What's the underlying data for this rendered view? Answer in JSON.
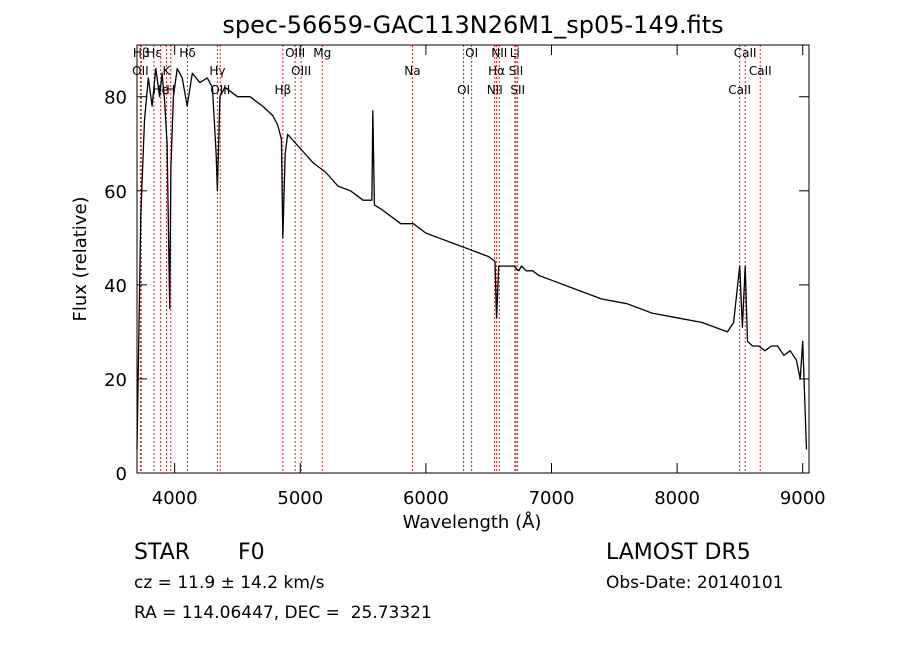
{
  "chart_data": {
    "type": "line",
    "title": "spec-56659-GAC113N26M1_sp05-149.fits",
    "xlabel": "Wavelength (Å)",
    "ylabel": "Flux (relative)",
    "xlim": [
      3700,
      9050
    ],
    "ylim": [
      0,
      91
    ],
    "x_ticks": [
      4000,
      5000,
      6000,
      7000,
      8000,
      9000
    ],
    "y_ticks": [
      0,
      20,
      40,
      60,
      80
    ],
    "grid": false,
    "line_color": "#000000",
    "marker_color": "#cc2222",
    "series": [
      {
        "x": [
          3700,
          3730,
          3760,
          3790,
          3820,
          3850,
          3880,
          3900,
          3920,
          3940,
          3960,
          3970,
          3990,
          4020,
          4060,
          4100,
          4140,
          4200,
          4260,
          4300,
          4330,
          4340,
          4360,
          4400,
          4500,
          4600,
          4700,
          4780,
          4820,
          4850,
          4861,
          4880,
          4900,
          5000,
          5100,
          5200,
          5300,
          5400,
          5500,
          5570,
          5577,
          5590,
          5650,
          5700,
          5800,
          5900,
          6000,
          6100,
          6200,
          6300,
          6400,
          6500,
          6550,
          6563,
          6580,
          6650,
          6700,
          6740,
          6760,
          6800,
          6850,
          6900,
          7000,
          7200,
          7400,
          7600,
          7800,
          8000,
          8200,
          8400,
          8450,
          8498,
          8520,
          8542,
          8560,
          8600,
          8650,
          8700,
          8750,
          8800,
          8850,
          8900,
          8950,
          8980,
          9000,
          9030
        ],
        "y": [
          5,
          55,
          75,
          84,
          78,
          86,
          80,
          85,
          79,
          70,
          35,
          65,
          80,
          86,
          84,
          78,
          85,
          83,
          84,
          82,
          68,
          60,
          80,
          82,
          80,
          80,
          78,
          76,
          74,
          71,
          50,
          68,
          72,
          69,
          66,
          64,
          61,
          60,
          58,
          58,
          77,
          57,
          56,
          55,
          53,
          53,
          51,
          50,
          49,
          48,
          47,
          46,
          45,
          33,
          44,
          44,
          44,
          43,
          44,
          43,
          43,
          42,
          41,
          39,
          37,
          36,
          34,
          33,
          32,
          30,
          32,
          44,
          31,
          44,
          28,
          27,
          27,
          26,
          27,
          27,
          25,
          26,
          24,
          20,
          28,
          5
        ]
      }
    ],
    "line_markers": [
      {
        "label": "Hβ",
        "x": 3734
      },
      {
        "label": "K",
        "x": 3934
      },
      {
        "label": "H",
        "x": 3969
      },
      {
        "label": "Hδ",
        "x": 4102
      },
      {
        "label": "Hγ",
        "x": 4340
      },
      {
        "label": "Hβ",
        "x": 4861
      },
      {
        "label": "Mg",
        "x": 5175
      },
      {
        "label": "Na",
        "x": 5893
      },
      {
        "label": "OI",
        "x": 6300
      },
      {
        "label": "OI",
        "x": 6364
      },
      {
        "label": "Hα",
        "x": 6563
      },
      {
        "label": "NII",
        "x": 6548
      },
      {
        "label": "NII",
        "x": 6584
      },
      {
        "label": "SII",
        "x": 6717
      },
      {
        "label": "SII",
        "x": 6731
      },
      {
        "label": "Li",
        "x": 6708
      },
      {
        "label": "OII",
        "x": 3727
      },
      {
        "label": "OIII",
        "x": 4363
      },
      {
        "label": "OIII",
        "x": 4959
      },
      {
        "label": "OIII",
        "x": 5007
      },
      {
        "label": "CaII",
        "x": 8498
      },
      {
        "label": "CaII",
        "x": 8542
      },
      {
        "label": "CaII",
        "x": 8662
      },
      {
        "label": "He",
        "x": 3889
      },
      {
        "label": "Hε",
        "x": 3835
      }
    ]
  },
  "info": {
    "class_label": "STAR",
    "subclass_label": "F0",
    "cz_text": "cz = 11.9 ± 14.2 km/s",
    "coords_text": "RA = 114.06447, DEC =  25.73321",
    "survey_text": "LAMOST DR5",
    "obs_date_text": "Obs-Date: 20140101"
  }
}
